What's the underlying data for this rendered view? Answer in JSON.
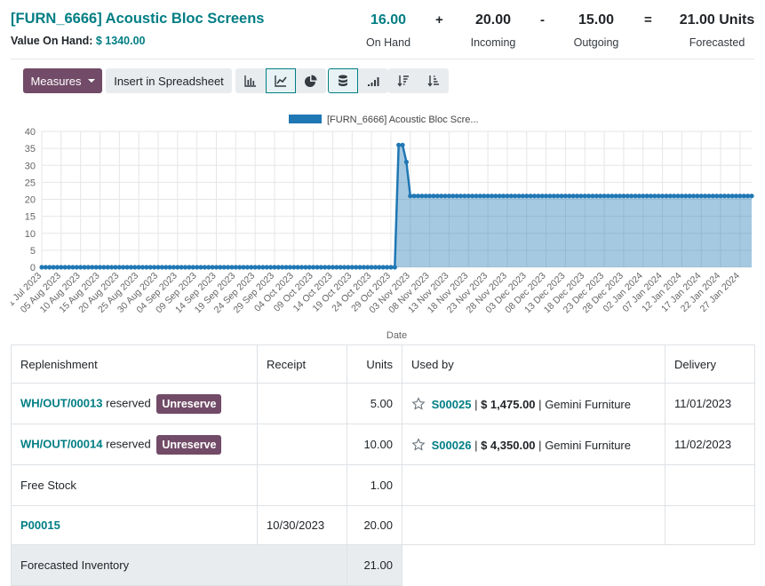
{
  "header": {
    "title": "[FURN_6666] Acoustic Bloc Screens",
    "value_label": "Value On Hand:",
    "value_amount": "$ 1340.00",
    "stats": [
      {
        "value": "16.00",
        "label": "On Hand"
      },
      {
        "value": "20.00",
        "label": "Incoming"
      },
      {
        "value": "15.00",
        "label": "Outgoing"
      },
      {
        "value": "21.00 Units",
        "label": "Forecasted"
      }
    ],
    "operators": [
      "+",
      "-",
      "="
    ]
  },
  "toolbar": {
    "measures_label": "Measures",
    "spreadsheet_label": "Insert in Spreadsheet",
    "view_buttons": [
      "bar-chart-icon",
      "line-chart-icon",
      "pie-chart-icon"
    ],
    "active_view": "line-chart-icon",
    "stack_button": "stacked-database-icon",
    "cumulative_button": "cumulative-bars-icon",
    "sort_buttons": [
      "sort-descending-icon",
      "sort-ascending-icon"
    ]
  },
  "colors": {
    "accent": "#017e84",
    "primary": "#714b67",
    "series": "#1f77b4"
  },
  "chart_data": {
    "type": "area",
    "legend": [
      "[FURN_6666] Acoustic Bloc Scre..."
    ],
    "legend_position": "top-center",
    "xlabel": "Date",
    "ylabel": "",
    "ylim": [
      0,
      40
    ],
    "yticks": [
      0,
      5,
      10,
      15,
      20,
      25,
      30,
      35,
      40
    ],
    "grid": true,
    "x_tick_labels": [
      "31 Jul 2023",
      "05 Aug 2023",
      "10 Aug 2023",
      "15 Aug 2023",
      "20 Aug 2023",
      "25 Aug 2023",
      "30 Aug 2023",
      "04 Sep 2023",
      "09 Sep 2023",
      "14 Sep 2023",
      "19 Sep 2023",
      "24 Sep 2023",
      "29 Sep 2023",
      "04 Oct 2023",
      "09 Oct 2023",
      "14 Oct 2023",
      "19 Oct 2023",
      "24 Oct 2023",
      "29 Oct 2023",
      "03 Nov 2023",
      "08 Nov 2023",
      "13 Nov 2023",
      "18 Nov 2023",
      "23 Nov 2023",
      "28 Nov 2023",
      "03 Dec 2023",
      "08 Dec 2023",
      "13 Dec 2023",
      "18 Dec 2023",
      "23 Dec 2023",
      "28 Dec 2023",
      "02 Jan 2024",
      "07 Jan 2024",
      "12 Jan 2024",
      "17 Jan 2024",
      "22 Jan 2024",
      "27 Jan 2024"
    ],
    "x_start": "31 Jul 2023",
    "x_end": "30 Jan 2024",
    "series": [
      {
        "name": "[FURN_6666] Acoustic Bloc Screens",
        "points": [
          [
            "31 Jul 2023",
            0
          ],
          [
            "30 Oct 2023",
            0
          ],
          [
            "31 Oct 2023",
            36
          ],
          [
            "01 Nov 2023",
            36
          ],
          [
            "02 Nov 2023",
            31
          ],
          [
            "03 Nov 2023",
            21
          ],
          [
            "30 Jan 2024",
            21
          ]
        ]
      }
    ]
  },
  "table": {
    "headers": [
      "Replenishment",
      "Receipt",
      "Units",
      "Used by",
      "Delivery"
    ],
    "rows": [
      {
        "ref": "WH/OUT/00013",
        "status": "reserved",
        "action": "Unreserve",
        "receipt": "",
        "units": "5.00",
        "order": "S00025",
        "amount": "$ 1,475.00",
        "partner": "Gemini Furniture",
        "delivery": "11/01/2023"
      },
      {
        "ref": "WH/OUT/00014",
        "status": "reserved",
        "action": "Unreserve",
        "receipt": "",
        "units": "10.00",
        "order": "S00026",
        "amount": "$ 4,350.00",
        "partner": "Gemini Furniture",
        "delivery": "11/02/2023"
      },
      {
        "ref": "Free Stock",
        "units": "1.00"
      },
      {
        "ref": "P00015",
        "receipt": "10/30/2023",
        "units": "20.00"
      }
    ],
    "separator": "|",
    "total_label": "Forecasted Inventory",
    "total_units": "21.00"
  }
}
